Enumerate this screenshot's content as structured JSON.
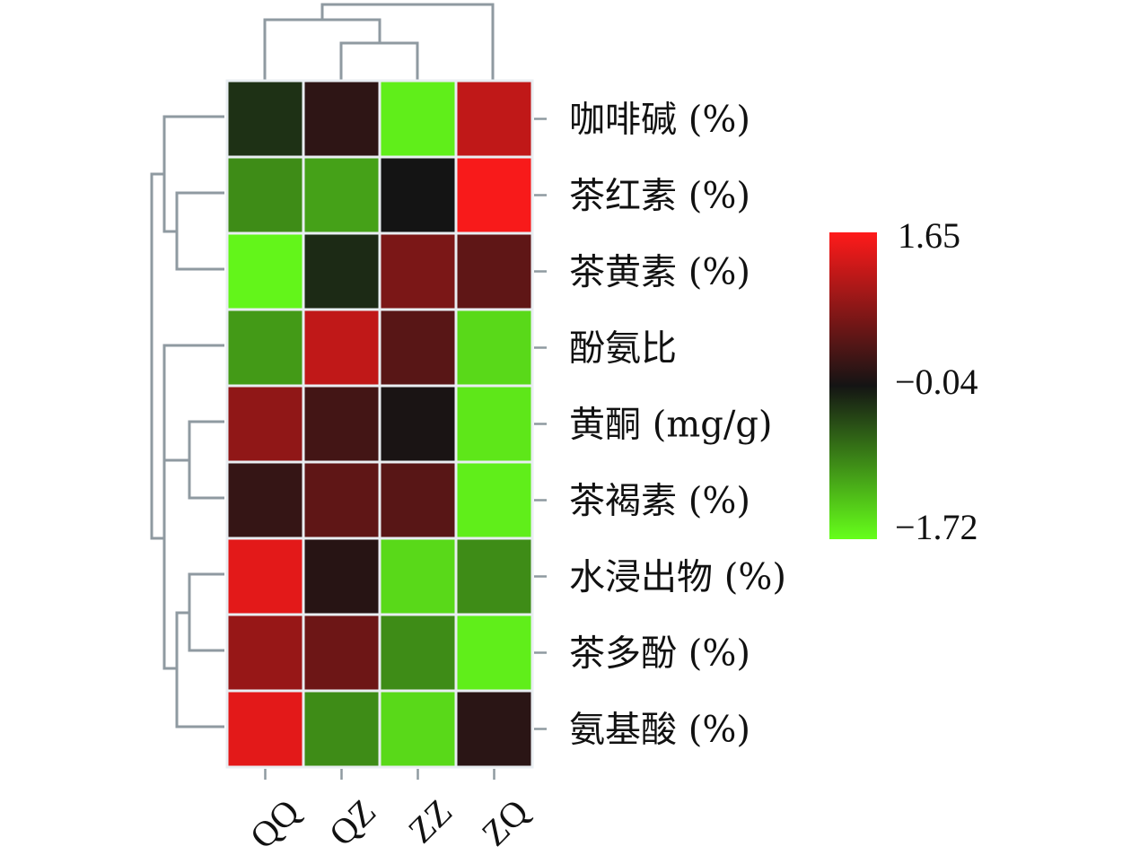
{
  "chart_data": {
    "type": "heatmap",
    "title": "",
    "columns": [
      "QQ",
      "QZ",
      "ZZ",
      "ZQ"
    ],
    "rows": [
      "咖啡碱 (%)",
      "茶红素 (%)",
      "茶黄素 (%)",
      "酚氨比",
      "黄酮 (mg/g)",
      "茶褐素 (%)",
      "水浸出物 (%)",
      "茶多酚 (%)",
      "氨基酸 (%)"
    ],
    "values": [
      [
        -0.25,
        0.15,
        -1.6,
        1.2
      ],
      [
        -0.9,
        -1.05,
        -0.04,
        1.6
      ],
      [
        -1.65,
        -0.2,
        0.7,
        0.5
      ],
      [
        -1.0,
        1.2,
        0.45,
        -1.45
      ],
      [
        0.85,
        0.3,
        0.0,
        -1.55
      ],
      [
        0.2,
        0.5,
        0.45,
        -1.6
      ],
      [
        1.45,
        0.1,
        -1.45,
        -0.9
      ],
      [
        0.9,
        0.6,
        -0.9,
        -1.6
      ],
      [
        1.45,
        -0.9,
        -1.45,
        0.12
      ]
    ],
    "colorbar": {
      "min": -1.72,
      "mid": -0.04,
      "max": 1.65,
      "ticks": [
        "1.65",
        "−0.04",
        "−1.72"
      ],
      "colors": {
        "low": "#66ff1a",
        "mid": "#141414",
        "high": "#ff1a1a"
      }
    },
    "row_dendrogram": "present",
    "column_dendrogram": "present",
    "legend_position": "right"
  }
}
